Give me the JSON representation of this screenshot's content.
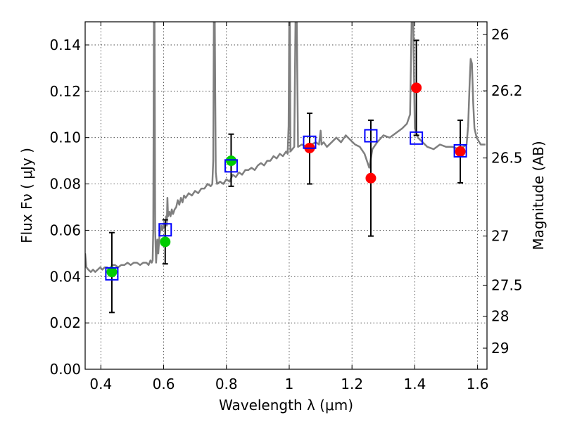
{
  "chart_data": {
    "type": "scatter",
    "xlabel": "Wavelength  λ (μm)",
    "ylabel": "Flux  Fν  ( μJy )",
    "y2label": "Magnitude (AB)",
    "xlim": [
      0.35,
      1.63
    ],
    "ylim": [
      0.0,
      0.15
    ],
    "grid": true,
    "x_ticks": [
      0.4,
      0.6,
      0.8,
      1.0,
      1.2,
      1.4,
      1.6
    ],
    "x_tick_labels": [
      "0.4",
      "0.6",
      "0.8",
      "1",
      "1.2",
      "1.4",
      "1.6"
    ],
    "y_ticks": [
      0.0,
      0.02,
      0.04,
      0.06,
      0.08,
      0.1,
      0.12,
      0.14
    ],
    "y_tick_labels": [
      "0.00",
      "0.02",
      "0.04",
      "0.06",
      "0.08",
      "0.10",
      "0.12",
      "0.14"
    ],
    "y2_ticks": [
      {
        "label": "26",
        "flux": 0.1445
      },
      {
        "label": "26.2",
        "flux": 0.1202
      },
      {
        "label": "26.5",
        "flux": 0.0912
      },
      {
        "label": "27",
        "flux": 0.0575
      },
      {
        "label": "27.5",
        "flux": 0.0363
      },
      {
        "label": "28",
        "flux": 0.0229
      },
      {
        "label": "29",
        "flux": 0.0091
      }
    ],
    "series": [
      {
        "kind": "line",
        "color": "#7f7f7f",
        "points": [
          [
            0.35,
            0.05
          ],
          [
            0.354,
            0.044
          ],
          [
            0.36,
            0.043
          ],
          [
            0.368,
            0.042
          ],
          [
            0.375,
            0.043
          ],
          [
            0.382,
            0.042
          ],
          [
            0.39,
            0.043
          ],
          [
            0.398,
            0.044
          ],
          [
            0.405,
            0.043
          ],
          [
            0.412,
            0.044
          ],
          [
            0.42,
            0.044
          ],
          [
            0.428,
            0.043
          ],
          [
            0.436,
            0.045
          ],
          [
            0.445,
            0.045
          ],
          [
            0.455,
            0.044
          ],
          [
            0.465,
            0.045
          ],
          [
            0.475,
            0.045
          ],
          [
            0.485,
            0.046
          ],
          [
            0.495,
            0.045
          ],
          [
            0.505,
            0.046
          ],
          [
            0.515,
            0.046
          ],
          [
            0.525,
            0.045
          ],
          [
            0.535,
            0.046
          ],
          [
            0.545,
            0.046
          ],
          [
            0.552,
            0.045
          ],
          [
            0.558,
            0.047
          ],
          [
            0.562,
            0.046
          ],
          [
            0.565,
            0.047
          ],
          [
            0.567,
            0.06
          ],
          [
            0.569,
            0.15
          ],
          [
            0.571,
            0.15
          ],
          [
            0.573,
            0.06
          ],
          [
            0.576,
            0.046
          ],
          [
            0.58,
            0.056
          ],
          [
            0.583,
            0.05
          ],
          [
            0.587,
            0.058
          ],
          [
            0.592,
            0.062
          ],
          [
            0.596,
            0.06
          ],
          [
            0.6,
            0.063
          ],
          [
            0.604,
            0.061
          ],
          [
            0.608,
            0.066
          ],
          [
            0.61,
            0.062
          ],
          [
            0.612,
            0.074
          ],
          [
            0.614,
            0.066
          ],
          [
            0.618,
            0.068
          ],
          [
            0.622,
            0.066
          ],
          [
            0.626,
            0.069
          ],
          [
            0.63,
            0.067
          ],
          [
            0.635,
            0.069
          ],
          [
            0.64,
            0.07
          ],
          [
            0.645,
            0.073
          ],
          [
            0.65,
            0.071
          ],
          [
            0.655,
            0.074
          ],
          [
            0.66,
            0.072
          ],
          [
            0.665,
            0.075
          ],
          [
            0.67,
            0.074
          ],
          [
            0.68,
            0.076
          ],
          [
            0.69,
            0.075
          ],
          [
            0.7,
            0.077
          ],
          [
            0.71,
            0.076
          ],
          [
            0.72,
            0.078
          ],
          [
            0.73,
            0.078
          ],
          [
            0.74,
            0.08
          ],
          [
            0.75,
            0.079
          ],
          [
            0.755,
            0.08
          ],
          [
            0.758,
            0.09
          ],
          [
            0.76,
            0.15
          ],
          [
            0.763,
            0.15
          ],
          [
            0.766,
            0.085
          ],
          [
            0.77,
            0.08
          ],
          [
            0.78,
            0.081
          ],
          [
            0.79,
            0.08
          ],
          [
            0.8,
            0.082
          ],
          [
            0.81,
            0.081
          ],
          [
            0.82,
            0.084
          ],
          [
            0.83,
            0.083
          ],
          [
            0.84,
            0.085
          ],
          [
            0.85,
            0.084
          ],
          [
            0.86,
            0.086
          ],
          [
            0.87,
            0.086
          ],
          [
            0.88,
            0.087
          ],
          [
            0.89,
            0.086
          ],
          [
            0.9,
            0.088
          ],
          [
            0.91,
            0.089
          ],
          [
            0.92,
            0.088
          ],
          [
            0.93,
            0.09
          ],
          [
            0.94,
            0.09
          ],
          [
            0.95,
            0.092
          ],
          [
            0.96,
            0.091
          ],
          [
            0.97,
            0.093
          ],
          [
            0.98,
            0.092
          ],
          [
            0.99,
            0.094
          ],
          [
            0.995,
            0.093
          ],
          [
            0.998,
            0.105
          ],
          [
            1.0,
            0.15
          ],
          [
            1.002,
            0.15
          ],
          [
            1.004,
            0.094
          ],
          [
            1.01,
            0.095
          ],
          [
            1.016,
            0.096
          ],
          [
            1.02,
            0.15
          ],
          [
            1.024,
            0.15
          ],
          [
            1.028,
            0.096
          ],
          [
            1.04,
            0.097
          ],
          [
            1.055,
            0.096
          ],
          [
            1.07,
            0.097
          ],
          [
            1.085,
            0.098
          ],
          [
            1.095,
            0.097
          ],
          [
            1.1,
            0.103
          ],
          [
            1.103,
            0.097
          ],
          [
            1.11,
            0.098
          ],
          [
            1.12,
            0.096
          ],
          [
            1.135,
            0.098
          ],
          [
            1.15,
            0.1
          ],
          [
            1.165,
            0.098
          ],
          [
            1.18,
            0.101
          ],
          [
            1.195,
            0.099
          ],
          [
            1.21,
            0.097
          ],
          [
            1.225,
            0.096
          ],
          [
            1.24,
            0.093
          ],
          [
            1.255,
            0.087
          ],
          [
            1.265,
            0.095
          ],
          [
            1.28,
            0.098
          ],
          [
            1.3,
            0.101
          ],
          [
            1.32,
            0.1
          ],
          [
            1.34,
            0.102
          ],
          [
            1.36,
            0.104
          ],
          [
            1.375,
            0.106
          ],
          [
            1.385,
            0.11
          ],
          [
            1.39,
            0.15
          ],
          [
            1.395,
            0.15
          ],
          [
            1.4,
            0.104
          ],
          [
            1.41,
            0.1
          ],
          [
            1.425,
            0.098
          ],
          [
            1.44,
            0.096
          ],
          [
            1.46,
            0.095
          ],
          [
            1.48,
            0.097
          ],
          [
            1.5,
            0.096
          ],
          [
            1.52,
            0.096
          ],
          [
            1.54,
            0.095
          ],
          [
            1.555,
            0.096
          ],
          [
            1.565,
            0.097
          ],
          [
            1.57,
            0.105
          ],
          [
            1.575,
            0.125
          ],
          [
            1.578,
            0.134
          ],
          [
            1.582,
            0.132
          ],
          [
            1.586,
            0.115
          ],
          [
            1.59,
            0.104
          ],
          [
            1.597,
            0.1
          ],
          [
            1.61,
            0.097
          ],
          [
            1.625,
            0.097
          ]
        ]
      },
      {
        "kind": "markers",
        "marker": "open-square",
        "color": "#0000ff",
        "points": [
          [
            0.435,
            0.0412
          ],
          [
            0.605,
            0.0602
          ],
          [
            0.815,
            0.0878
          ],
          [
            1.065,
            0.098
          ],
          [
            1.26,
            0.1008
          ],
          [
            1.405,
            0.0998
          ],
          [
            1.545,
            0.0943
          ]
        ]
      },
      {
        "kind": "markers",
        "marker": "filled-circle",
        "color": "#00cc00",
        "points": [
          [
            0.435,
            0.042
          ],
          [
            0.605,
            0.055
          ],
          [
            0.815,
            0.09
          ]
        ]
      },
      {
        "kind": "markers",
        "marker": "filled-circle",
        "color": "#ff0000",
        "points": [
          [
            1.065,
            0.0955
          ],
          [
            1.26,
            0.0825
          ],
          [
            1.405,
            0.1215
          ],
          [
            1.545,
            0.094
          ]
        ]
      },
      {
        "kind": "errorbars",
        "color": "#000000",
        "bars": [
          {
            "x": 0.435,
            "low": 0.0245,
            "high": 0.059
          },
          {
            "x": 0.605,
            "low": 0.0455,
            "high": 0.0645
          },
          {
            "x": 0.815,
            "low": 0.079,
            "high": 0.1015
          },
          {
            "x": 1.065,
            "low": 0.08,
            "high": 0.1105
          },
          {
            "x": 1.26,
            "low": 0.0575,
            "high": 0.1075
          },
          {
            "x": 1.405,
            "low": 0.101,
            "high": 0.142
          },
          {
            "x": 1.545,
            "low": 0.0805,
            "high": 0.1075
          }
        ]
      }
    ]
  }
}
